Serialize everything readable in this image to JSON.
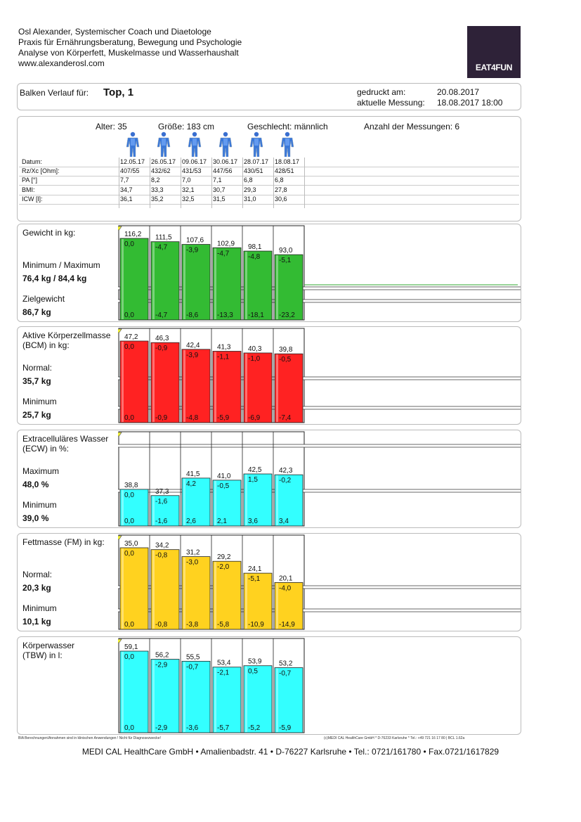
{
  "header": {
    "lines": [
      "Osl Alexander, Systemischer Coach und Diaetologe",
      "Praxis für Ernährungsberatung, Bewegung und Psychologie",
      "Analyse von Körperfett, Muskelmasse und Wasserhaushalt",
      "www.alexanderosl.com"
    ],
    "logo_text": "EAT4FUN"
  },
  "info": {
    "label": "Balken Verlauf für:",
    "name": "Top, 1",
    "printed_label": "gedruckt am:",
    "printed_value": "20.08.2017",
    "current_label": "aktuelle Messung:",
    "current_value": "18.08.2017 18:00"
  },
  "summary": {
    "age": "Alter: 35",
    "height": "Größe: 183 cm",
    "sex": "Geschlecht: männlich",
    "count": "Anzahl der Messungen: 6"
  },
  "table": {
    "rows": [
      {
        "label": "Datum:",
        "values": [
          "12.05.17",
          "26.05.17",
          "09.06.17",
          "30.06.17",
          "28.07.17",
          "18.08.17"
        ]
      },
      {
        "label": "Rz/Xc [Ohm]:",
        "values": [
          "407/55",
          "432/62",
          "431/53",
          "447/56",
          "430/51",
          "428/51"
        ]
      },
      {
        "label": "PA [°]",
        "values": [
          "7,7",
          "8,2",
          "7,0",
          "7,1",
          "6,8",
          "6,8"
        ]
      },
      {
        "label": "BMI:",
        "values": [
          "34,7",
          "33,3",
          "32,1",
          "30,7",
          "29,3",
          "27,8"
        ]
      },
      {
        "label": "ICW [l]:",
        "values": [
          "36,1",
          "35,2",
          "32,5",
          "31,5",
          "31,0",
          "30,6"
        ]
      }
    ]
  },
  "panels": [
    {
      "id": "gewicht",
      "title": [
        "Gewicht in kg:"
      ],
      "label1": "Minimum / Maximum",
      "value1": "76,4 kg / 84,4 kg",
      "label2": "Zielgewicht",
      "value2": "86,7 kg",
      "color": "#33bb33",
      "dark": "#1f8a1f",
      "values": [
        116.2,
        111.5,
        107.6,
        102.9,
        98.1,
        93.0
      ],
      "labels": [
        "116,2",
        "111,5",
        "107,6",
        "102,9",
        "98,1",
        "93,0"
      ],
      "diff": [
        "0,0",
        "-4,7",
        "-3,9",
        "-4,7",
        "-4,8",
        "-5,1"
      ],
      "cum": [
        "0,0",
        "-4,7",
        "-8,6",
        "-13,3",
        "-18,1",
        "-23,2"
      ]
    },
    {
      "id": "bcm",
      "title": [
        "Aktive Körperzellmasse",
        "(BCM) in kg:"
      ],
      "label1": "Normal:",
      "value1": "35,7 kg",
      "label2": "Minimum",
      "value2": "25,7 kg",
      "color": "#ff2222",
      "dark": "#b01010",
      "values": [
        47.2,
        46.3,
        42.4,
        41.3,
        40.3,
        39.8
      ],
      "labels": [
        "47,2",
        "46,3",
        "42,4",
        "41,3",
        "40,3",
        "39,8"
      ],
      "diff": [
        "0,0",
        "-0,9",
        "-3,9",
        "-1,1",
        "-1,0",
        "-0,5"
      ],
      "cum": [
        "0,0",
        "-0,9",
        "-4,8",
        "-5,9",
        "-6,9",
        "-7,4"
      ]
    },
    {
      "id": "ecw",
      "title": [
        "Extracelluläres Wasser",
        "(ECW) in %:"
      ],
      "label1": "Maximum",
      "value1": "48,0 %",
      "label2": "Minimum",
      "value2": "39,0 %",
      "color": "#33ffff",
      "dark": "#1aa0a0",
      "values": [
        38.8,
        37.3,
        41.5,
        41.0,
        42.5,
        42.3
      ],
      "labels": [
        "38,8",
        "37,3",
        "41,5",
        "41,0",
        "42,5",
        "42,3"
      ],
      "diff": [
        "0,0",
        "-1,6",
        "4,2",
        "-0,5",
        "1,5",
        "-0,2"
      ],
      "cum": [
        "0,0",
        "-1,6",
        "2,6",
        "2,1",
        "3,6",
        "3,4"
      ]
    },
    {
      "id": "fm",
      "title": [
        "Fettmasse (FM) in kg:"
      ],
      "label1": "Normal:",
      "value1": "20,3 kg",
      "label2": "Minimum",
      "value2": "10,1 kg",
      "color": "#ffd21f",
      "dark": "#c09000",
      "values": [
        35.0,
        34.2,
        31.2,
        29.2,
        24.1,
        20.1
      ],
      "labels": [
        "35,0",
        "34,2",
        "31,2",
        "29,2",
        "24,1",
        "20,1"
      ],
      "diff": [
        "0,0",
        "-0,8",
        "-3,0",
        "-2,0",
        "-5,1",
        "-4,0"
      ],
      "cum": [
        "0,0",
        "-0,8",
        "-3,8",
        "-5,8",
        "-10,9",
        "-14,9"
      ]
    },
    {
      "id": "tbw",
      "title": [
        "Körperwasser",
        "(TBW) in l:"
      ],
      "label1": "",
      "value1": "",
      "label2": "",
      "value2": "",
      "color": "#33ffff",
      "dark": "#1aa0a0",
      "values": [
        59.1,
        56.2,
        55.5,
        53.4,
        53.9,
        53.2
      ],
      "labels": [
        "59,1",
        "56,2",
        "55,5",
        "53,4",
        "53,9",
        "53,2"
      ],
      "diff": [
        "0,0",
        "-2,9",
        "-0,7",
        "-2,1",
        "0,5",
        "-0,7"
      ],
      "cum": [
        "0,0",
        "-2,9",
        "-3,6",
        "-5,7",
        "-5,2",
        "-5,9"
      ]
    }
  ],
  "footer": {
    "note_left": "BIA Berechnungen/Annahmen sind in klinischen Anwendungen ! Nicht für Diagnosezwecke!",
    "note_right": "(c)MEDI CAL HealthCare GmbH * D-76233 Karlsruhe * Tel.: +49 721 16 17 80 | BCL 1.62a",
    "address": "MEDI CAL HealthCare GmbH • Amalienbadstr. 41 • D-76227 Karlsruhe • Tel.: 0721/161780 • Fax.0721/1617829"
  }
}
